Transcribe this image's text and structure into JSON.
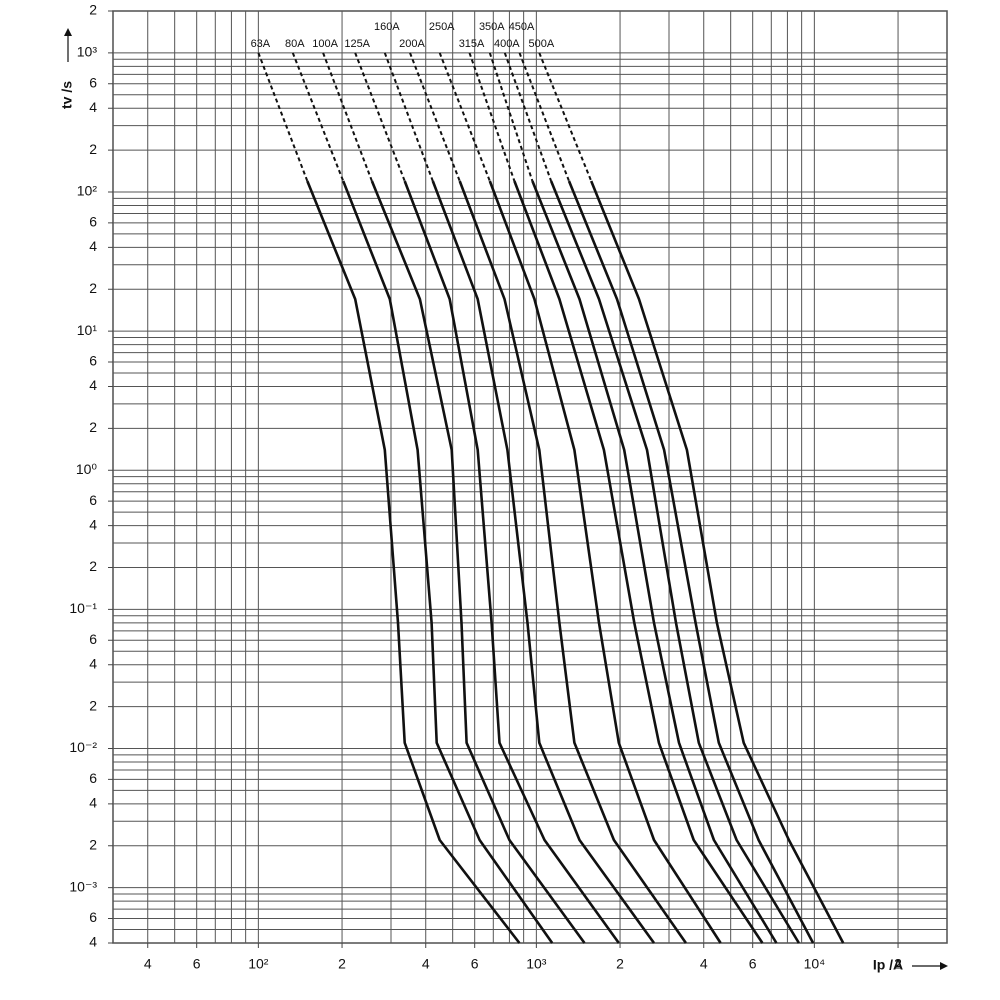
{
  "chart_data": {
    "type": "line",
    "log_x": true,
    "log_y": true,
    "grid": true,
    "color": "#111111",
    "xlabel": "Ip /A",
    "ylabel": "tv /s",
    "xlim": [
      30,
      30000
    ],
    "ylim": [
      0.0004,
      2000
    ],
    "xticks": [
      {
        "value": 40,
        "label": "4"
      },
      {
        "value": 60,
        "label": "6"
      },
      {
        "value": 100,
        "label": "10²"
      },
      {
        "value": 200,
        "label": "2"
      },
      {
        "value": 400,
        "label": "4"
      },
      {
        "value": 600,
        "label": "6"
      },
      {
        "value": 1000,
        "label": "10³"
      },
      {
        "value": 2000,
        "label": "2"
      },
      {
        "value": 4000,
        "label": "4"
      },
      {
        "value": 6000,
        "label": "6"
      },
      {
        "value": 10000,
        "label": "10⁴"
      },
      {
        "value": 20000,
        "label": "2"
      }
    ],
    "yticks": [
      {
        "value": 2000,
        "label": "2"
      },
      {
        "value": 1000,
        "label": "10³"
      },
      {
        "value": 600,
        "label": "6"
      },
      {
        "value": 400,
        "label": "4"
      },
      {
        "value": 200,
        "label": "2"
      },
      {
        "value": 100,
        "label": "10²"
      },
      {
        "value": 60,
        "label": "6"
      },
      {
        "value": 40,
        "label": "4"
      },
      {
        "value": 20,
        "label": "2"
      },
      {
        "value": 10,
        "label": "10¹"
      },
      6,
      4,
      2,
      {
        "value": 1,
        "label": "10⁰"
      },
      {
        "value": 0.6,
        "label": "6"
      },
      {
        "value": 0.4,
        "label": "4"
      },
      {
        "value": 0.2,
        "label": "2"
      },
      {
        "value": 0.1,
        "label": "10⁻¹"
      },
      {
        "value": 0.06,
        "label": "6"
      },
      {
        "value": 0.04,
        "label": "4"
      },
      {
        "value": 0.02,
        "label": "2"
      },
      {
        "value": 0.01,
        "label": "10⁻²"
      },
      {
        "value": 0.006,
        "label": "6"
      },
      {
        "value": 0.004,
        "label": "4"
      },
      {
        "value": 0.002,
        "label": "2"
      },
      {
        "value": 0.001,
        "label": "10⁻³"
      },
      {
        "value": 0.0006,
        "label": "6"
      },
      {
        "value": 0.0004,
        "label": "4"
      }
    ],
    "x_minor_ticks": [
      30,
      40,
      50,
      60,
      70,
      80,
      90,
      100,
      200,
      300,
      400,
      500,
      600,
      700,
      800,
      900,
      1000,
      2000,
      3000,
      4000,
      5000,
      6000,
      7000,
      8000,
      9000,
      10000,
      20000,
      30000
    ],
    "y_minor_ticks": [
      0.0004,
      0.0005,
      0.0006,
      0.0007,
      0.0008,
      0.0009,
      0.001,
      0.002,
      0.003,
      0.004,
      0.005,
      0.006,
      0.007,
      0.008,
      0.009,
      0.01,
      0.02,
      0.03,
      0.04,
      0.05,
      0.06,
      0.07,
      0.08,
      0.09,
      0.1,
      0.2,
      0.3,
      0.4,
      0.5,
      0.6,
      0.7,
      0.8,
      0.9,
      1,
      2,
      3,
      4,
      5,
      6,
      7,
      8,
      9,
      10,
      20,
      30,
      40,
      50,
      60,
      70,
      80,
      90,
      100,
      200,
      300,
      400,
      500,
      600,
      700,
      800,
      900,
      1000,
      2000
    ],
    "series": [
      {
        "name": "63A",
        "dashed_x": [
          100,
          150
        ],
        "dashed_values": [
          1000,
          120
        ],
        "x": [
          150,
          223,
          285,
          318,
          336,
          449,
          869
        ],
        "values": [
          120,
          17,
          1.4,
          0.08,
          0.011,
          0.0022,
          0.0004
        ]
      },
      {
        "name": "80A",
        "dashed_x": [
          133,
          202
        ],
        "dashed_values": [
          1000,
          120
        ],
        "x": [
          202,
          297,
          374,
          420,
          438,
          625,
          1140
        ],
        "values": [
          120,
          17,
          1.4,
          0.08,
          0.011,
          0.0022,
          0.0004
        ]
      },
      {
        "name": "100A",
        "dashed_x": [
          171,
          256
        ],
        "dashed_values": [
          1000,
          120
        ],
        "x": [
          256,
          381,
          496,
          538,
          561,
          800,
          1490
        ],
        "values": [
          120,
          17,
          1.4,
          0.08,
          0.011,
          0.0022,
          0.0004
        ]
      },
      {
        "name": "125A",
        "dashed_x": [
          223,
          336
        ],
        "dashed_values": [
          1000,
          120
        ],
        "x": [
          336,
          488,
          615,
          690,
          737,
          1070,
          1980
        ],
        "values": [
          120,
          17,
          1.4,
          0.08,
          0.011,
          0.0022,
          0.0004
        ]
      },
      {
        "name": "160A",
        "dashed_x": [
          285,
          424
        ],
        "dashed_values": [
          1000,
          120
        ],
        "x": [
          424,
          615,
          787,
          929,
          1025,
          1430,
          2650
        ],
        "values": [
          120,
          17,
          1.4,
          0.08,
          0.011,
          0.0022,
          0.0004
        ]
      },
      {
        "name": "200A",
        "dashed_x": [
          351,
          530
        ],
        "dashed_values": [
          1000,
          120
        ],
        "x": [
          530,
          768,
          1025,
          1210,
          1370,
          1900,
          3450
        ],
        "values": [
          120,
          17,
          1.4,
          0.08,
          0.011,
          0.0022,
          0.0004
        ]
      },
      {
        "name": "250A",
        "dashed_x": [
          449,
          680
        ],
        "dashed_values": [
          1000,
          120
        ],
        "x": [
          680,
          984,
          1370,
          1680,
          1980,
          2650,
          4600
        ],
        "values": [
          120,
          17,
          1.4,
          0.08,
          0.011,
          0.0022,
          0.0004
        ]
      },
      {
        "name": "315A",
        "dashed_x": [
          575,
          834
        ],
        "dashed_values": [
          1000,
          120
        ],
        "x": [
          834,
          1210,
          1750,
          2250,
          2760,
          3680,
          6500
        ],
        "values": [
          120,
          17,
          1.4,
          0.08,
          0.011,
          0.0022,
          0.0004
        ]
      },
      {
        "name": "350A",
        "dashed_x": [
          680,
          968
        ],
        "dashed_values": [
          1000,
          120
        ],
        "x": [
          968,
          1430,
          2070,
          2650,
          3260,
          4350,
          7300
        ],
        "values": [
          120,
          17,
          1.4,
          0.08,
          0.011,
          0.0022,
          0.0004
        ]
      },
      {
        "name": "400A",
        "dashed_x": [
          770,
          1130
        ],
        "dashed_values": [
          1000,
          120
        ],
        "x": [
          1130,
          1680,
          2500,
          3180,
          3840,
          5250,
          8800
        ],
        "values": [
          120,
          17,
          1.4,
          0.08,
          0.011,
          0.0022,
          0.0004
        ]
      },
      {
        "name": "450A",
        "dashed_x": [
          870,
          1310
        ],
        "dashed_values": [
          1000,
          120
        ],
        "x": [
          1310,
          1950,
          2880,
          3740,
          4530,
          6300,
          9900
        ],
        "values": [
          120,
          17,
          1.4,
          0.08,
          0.011,
          0.0022,
          0.0004
        ]
      },
      {
        "name": "500A",
        "dashed_x": [
          1025,
          1575
        ],
        "dashed_values": [
          1000,
          120
        ],
        "x": [
          1575,
          2340,
          3480,
          4460,
          5570,
          8100,
          12700
        ],
        "values": [
          120,
          17,
          1.4,
          0.08,
          0.011,
          0.0022,
          0.0004
        ]
      }
    ]
  }
}
